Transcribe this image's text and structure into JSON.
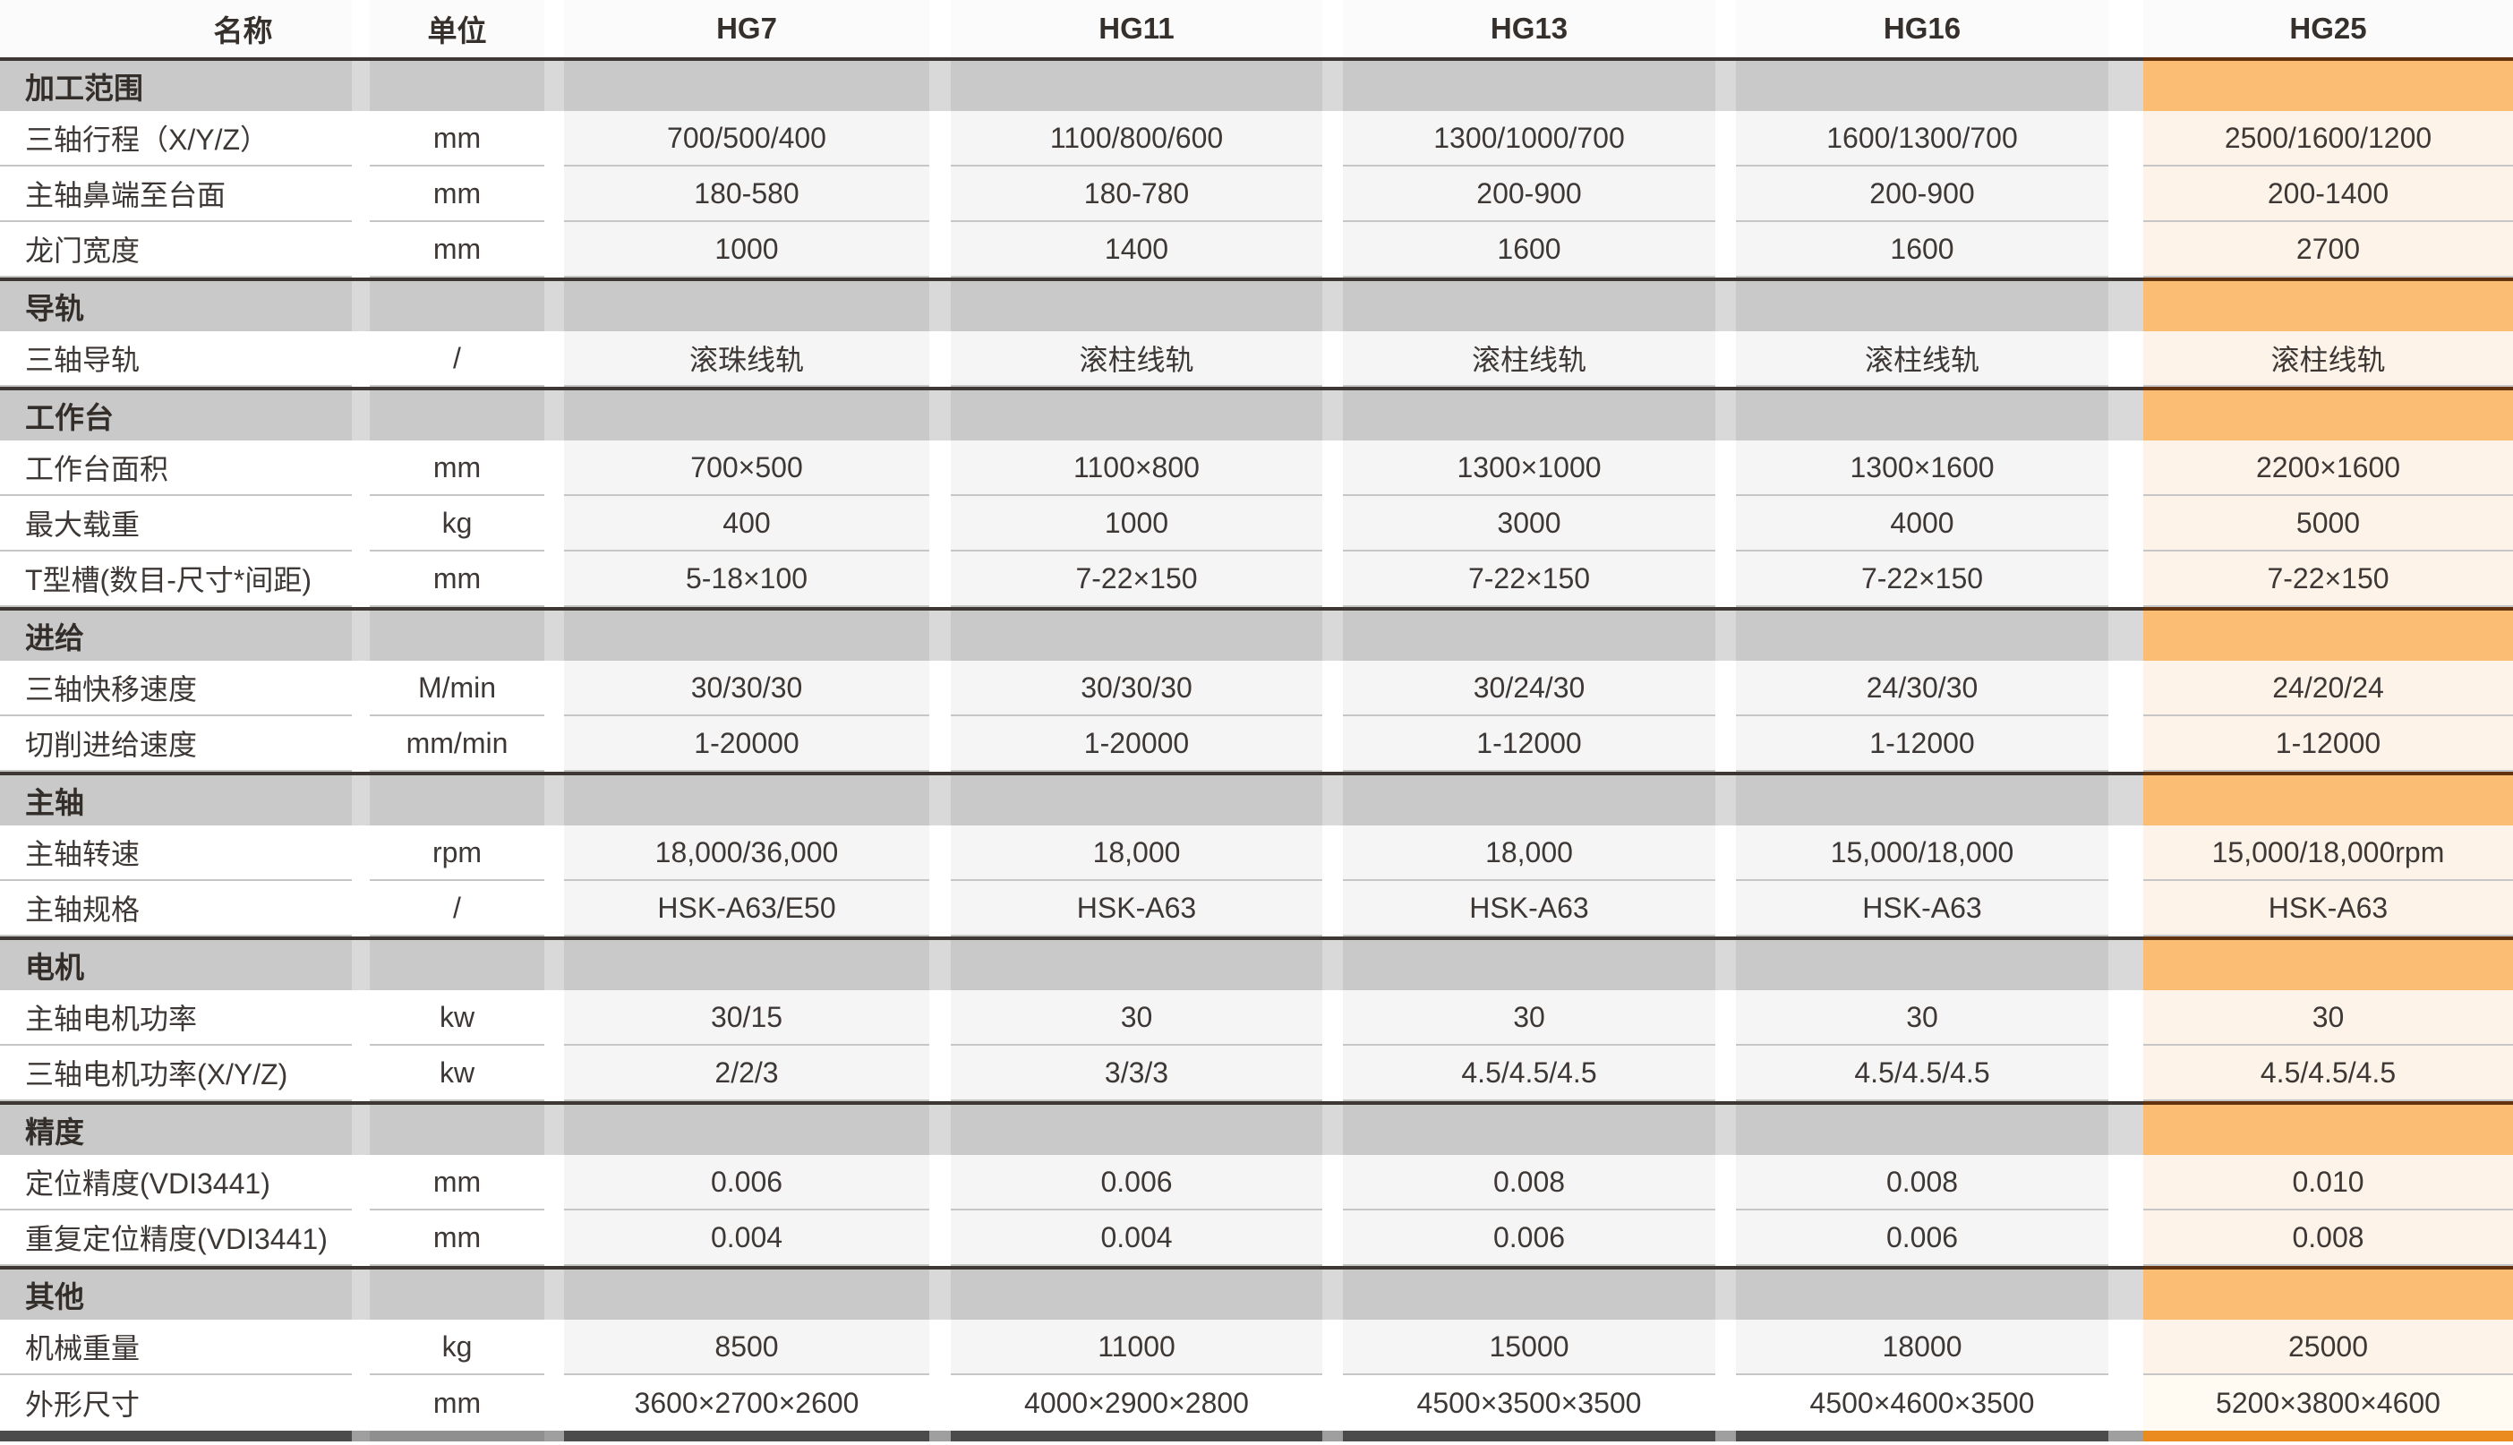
{
  "colors": {
    "accent_orange_section": "#fbbc74",
    "accent_orange_bar": "#e98b1e",
    "hg25_text": "#9d5204",
    "hg25_cell_bg": "#fdf3e8",
    "hg25_header_bg": "#fdf2e6",
    "section_gray": "#c9c9c9",
    "row_gray": "#f5f5f5",
    "divider_dark": "#3d3835",
    "divider_brown": "#63330f"
  },
  "table": {
    "columns": [
      "名称",
      "单位",
      "HG7",
      "HG11",
      "HG13",
      "HG16",
      "HG25"
    ],
    "sections": [
      {
        "title": "加工范围",
        "rows": [
          {
            "label": "三轴行程（X/Y/Z）",
            "unit": "mm",
            "values": [
              "700/500/400",
              "1100/800/600",
              "1300/1000/700",
              "1600/1300/700",
              "2500/1600/1200"
            ]
          },
          {
            "label": "主轴鼻端至台面",
            "unit": "mm",
            "values": [
              "180-580",
              "180-780",
              "200-900",
              "200-900",
              "200-1400"
            ]
          },
          {
            "label": "龙门宽度",
            "unit": "mm",
            "values": [
              "1000",
              "1400",
              "1600",
              "1600",
              "2700"
            ]
          }
        ]
      },
      {
        "title": "导轨",
        "rows": [
          {
            "label": "三轴导轨",
            "unit": "/",
            "values": [
              "滚珠线轨",
              "滚柱线轨",
              "滚柱线轨",
              "滚柱线轨",
              "滚柱线轨"
            ]
          }
        ]
      },
      {
        "title": "工作台",
        "rows": [
          {
            "label": "工作台面积",
            "unit": "mm",
            "values": [
              "700×500",
              "1100×800",
              "1300×1000",
              "1300×1600",
              "2200×1600"
            ]
          },
          {
            "label": "最大载重",
            "unit": "kg",
            "values": [
              "400",
              "1000",
              "3000",
              "4000",
              "5000"
            ]
          },
          {
            "label": "T型槽(数目-尺寸*间距)",
            "unit": "mm",
            "values": [
              "5-18×100",
              "7-22×150",
              "7-22×150",
              "7-22×150",
              "7-22×150"
            ]
          }
        ]
      },
      {
        "title": "进给",
        "rows": [
          {
            "label": "三轴快移速度",
            "unit": "M/min",
            "values": [
              "30/30/30",
              "30/30/30",
              "30/24/30",
              "24/30/30",
              "24/20/24"
            ]
          },
          {
            "label": "切削进给速度",
            "unit": "mm/min",
            "values": [
              "1-20000",
              "1-20000",
              "1-12000",
              "1-12000",
              "1-12000"
            ]
          }
        ]
      },
      {
        "title": "主轴",
        "rows": [
          {
            "label": "主轴转速",
            "unit": "rpm",
            "values": [
              "18,000/36,000",
              "18,000",
              "18,000",
              "15,000/18,000",
              "15,000/18,000rpm"
            ]
          },
          {
            "label": "主轴规格",
            "unit": "/",
            "values": [
              "HSK-A63/E50",
              "HSK-A63",
              "HSK-A63",
              "HSK-A63",
              "HSK-A63"
            ]
          }
        ]
      },
      {
        "title": "电机",
        "rows": [
          {
            "label": "主轴电机功率",
            "unit": "kw",
            "values": [
              "30/15",
              "30",
              "30",
              "30",
              "30"
            ]
          },
          {
            "label": "三轴电机功率(X/Y/Z)",
            "unit": "kw",
            "values": [
              "2/2/3",
              "3/3/3",
              "4.5/4.5/4.5",
              "4.5/4.5/4.5",
              "4.5/4.5/4.5"
            ]
          }
        ]
      },
      {
        "title": "精度",
        "rows": [
          {
            "label": "定位精度(VDI3441)",
            "unit": "mm",
            "values": [
              "0.006",
              "0.006",
              "0.008",
              "0.008",
              "0.010"
            ]
          },
          {
            "label": "重复定位精度(VDI3441)",
            "unit": "mm",
            "values": [
              "0.004",
              "0.004",
              "0.006",
              "0.006",
              "0.008"
            ]
          }
        ]
      },
      {
        "title": "其他",
        "rows": [
          {
            "label": "机械重量",
            "unit": "kg",
            "values": [
              "8500",
              "11000",
              "15000",
              "18000",
              "25000"
            ]
          },
          {
            "label": "外形尺寸",
            "unit": "mm",
            "values": [
              "3600×2700×2600",
              "4000×2900×2800",
              "4500×3500×3500",
              "4500×4600×3500",
              "5200×3800×4600"
            ]
          }
        ]
      }
    ]
  }
}
